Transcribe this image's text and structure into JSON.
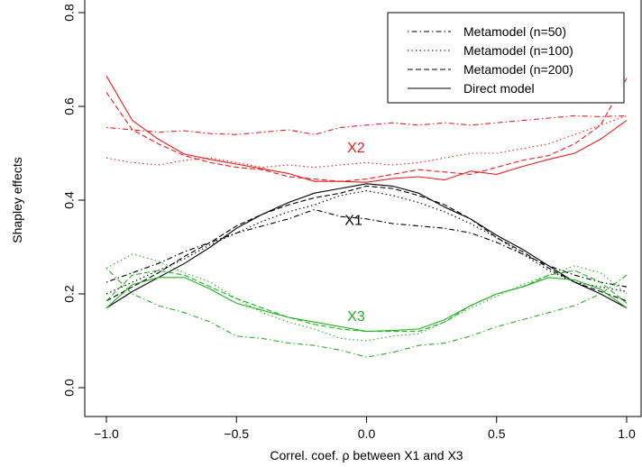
{
  "chart_data": {
    "type": "line",
    "title": "",
    "xlabel": "Correl. coef. ρ between X1 and X3",
    "ylabel": "Shapley effects",
    "xlim": [
      -1.0,
      1.0
    ],
    "ylim": [
      0.0,
      0.8
    ],
    "x_ticks": [
      "−1.0",
      "−0.5",
      "0.0",
      "0.5",
      "1.0"
    ],
    "y_ticks": [
      "0.0",
      "0.2",
      "0.4",
      "0.6",
      "0.8"
    ],
    "grid": false,
    "legend_position": "top-right",
    "legend": [
      {
        "label": "Metamodel (n=50)",
        "style": "dotdash"
      },
      {
        "label": "Metamodel (n=100)",
        "style": "dotted"
      },
      {
        "label": "Metamodel (n=200)",
        "style": "dashed"
      },
      {
        "label": "Direct model",
        "style": "solid"
      }
    ],
    "x": [
      -1.0,
      -0.9,
      -0.8,
      -0.7,
      -0.6,
      -0.5,
      -0.4,
      -0.3,
      -0.2,
      -0.1,
      0.0,
      0.1,
      0.2,
      0.3,
      0.4,
      0.5,
      0.6,
      0.7,
      0.8,
      0.9,
      1.0
    ],
    "groups": [
      {
        "name": "X2",
        "color": "#ee1c1c",
        "label_at": [
          -0.04,
          0.51
        ],
        "series": [
          {
            "style": "solid",
            "values": [
              0.665,
              0.57,
              0.53,
              0.498,
              0.487,
              0.477,
              0.467,
              0.457,
              0.44,
              0.44,
              0.438,
              0.446,
              0.45,
              0.443,
              0.462,
              0.455,
              0.472,
              0.487,
              0.5,
              0.53,
              0.57
            ]
          },
          {
            "style": "dashed",
            "values": [
              0.63,
              0.55,
              0.52,
              0.495,
              0.48,
              0.47,
              0.465,
              0.45,
              0.445,
              0.44,
              0.445,
              0.455,
              0.465,
              0.46,
              0.455,
              0.47,
              0.485,
              0.495,
              0.52,
              0.56,
              0.66
            ]
          },
          {
            "style": "dotted",
            "values": [
              0.49,
              0.48,
              0.475,
              0.485,
              0.49,
              0.48,
              0.47,
              0.475,
              0.47,
              0.475,
              0.48,
              0.475,
              0.48,
              0.49,
              0.5,
              0.5,
              0.51,
              0.52,
              0.54,
              0.56,
              0.58
            ]
          },
          {
            "style": "dotdash",
            "values": [
              0.555,
              0.55,
              0.545,
              0.548,
              0.542,
              0.54,
              0.545,
              0.55,
              0.54,
              0.555,
              0.56,
              0.565,
              0.56,
              0.565,
              0.56,
              0.565,
              0.57,
              0.575,
              0.58,
              0.578,
              0.58
            ]
          }
        ]
      },
      {
        "name": "X1",
        "color": "#000000",
        "label_at": [
          -0.05,
          0.355
        ],
        "series": [
          {
            "style": "solid",
            "values": [
              0.17,
              0.205,
              0.235,
              0.265,
              0.3,
              0.34,
              0.37,
              0.395,
              0.415,
              0.425,
              0.435,
              0.43,
              0.415,
              0.385,
              0.36,
              0.325,
              0.295,
              0.26,
              0.225,
              0.2,
              0.17
            ]
          },
          {
            "style": "dashed",
            "values": [
              0.185,
              0.215,
              0.245,
              0.28,
              0.31,
              0.345,
              0.37,
              0.39,
              0.405,
              0.415,
              0.43,
              0.425,
              0.41,
              0.39,
              0.36,
              0.32,
              0.29,
              0.255,
              0.225,
              0.205,
              0.185
            ]
          },
          {
            "style": "dotted",
            "values": [
              0.2,
              0.225,
              0.25,
              0.275,
              0.305,
              0.33,
              0.355,
              0.375,
              0.39,
              0.41,
              0.42,
              0.41,
              0.395,
              0.375,
              0.35,
              0.32,
              0.285,
              0.25,
              0.225,
              0.215,
              0.205
            ]
          },
          {
            "style": "dotdash",
            "values": [
              0.225,
              0.245,
              0.265,
              0.29,
              0.31,
              0.33,
              0.345,
              0.36,
              0.38,
              0.365,
              0.36,
              0.35,
              0.345,
              0.34,
              0.33,
              0.31,
              0.285,
              0.26,
              0.24,
              0.225,
              0.215
            ]
          }
        ]
      },
      {
        "name": "X3",
        "color": "#1fb41f",
        "label_at": [
          -0.04,
          0.15
        ],
        "series": [
          {
            "style": "solid",
            "values": [
              0.17,
              0.22,
              0.235,
              0.235,
              0.21,
              0.18,
              0.165,
              0.15,
              0.14,
              0.13,
              0.12,
              0.122,
              0.125,
              0.145,
              0.175,
              0.2,
              0.215,
              0.235,
              0.23,
              0.21,
              0.17
            ]
          },
          {
            "style": "dashed",
            "values": [
              0.185,
              0.24,
              0.25,
              0.24,
              0.215,
              0.19,
              0.17,
              0.15,
              0.135,
              0.125,
              0.12,
              0.12,
              0.12,
              0.14,
              0.175,
              0.2,
              0.215,
              0.24,
              0.25,
              0.225,
              0.18
            ]
          },
          {
            "style": "dotted",
            "values": [
              0.255,
              0.285,
              0.27,
              0.245,
              0.225,
              0.19,
              0.16,
              0.14,
              0.125,
              0.105,
              0.1,
              0.11,
              0.115,
              0.14,
              0.17,
              0.195,
              0.22,
              0.24,
              0.26,
              0.245,
              0.2
            ]
          },
          {
            "style": "dotdash",
            "values": [
              0.255,
              0.2,
              0.175,
              0.16,
              0.14,
              0.11,
              0.105,
              0.095,
              0.09,
              0.08,
              0.065,
              0.075,
              0.09,
              0.095,
              0.11,
              0.13,
              0.145,
              0.16,
              0.175,
              0.2,
              0.24
            ]
          }
        ]
      }
    ]
  }
}
